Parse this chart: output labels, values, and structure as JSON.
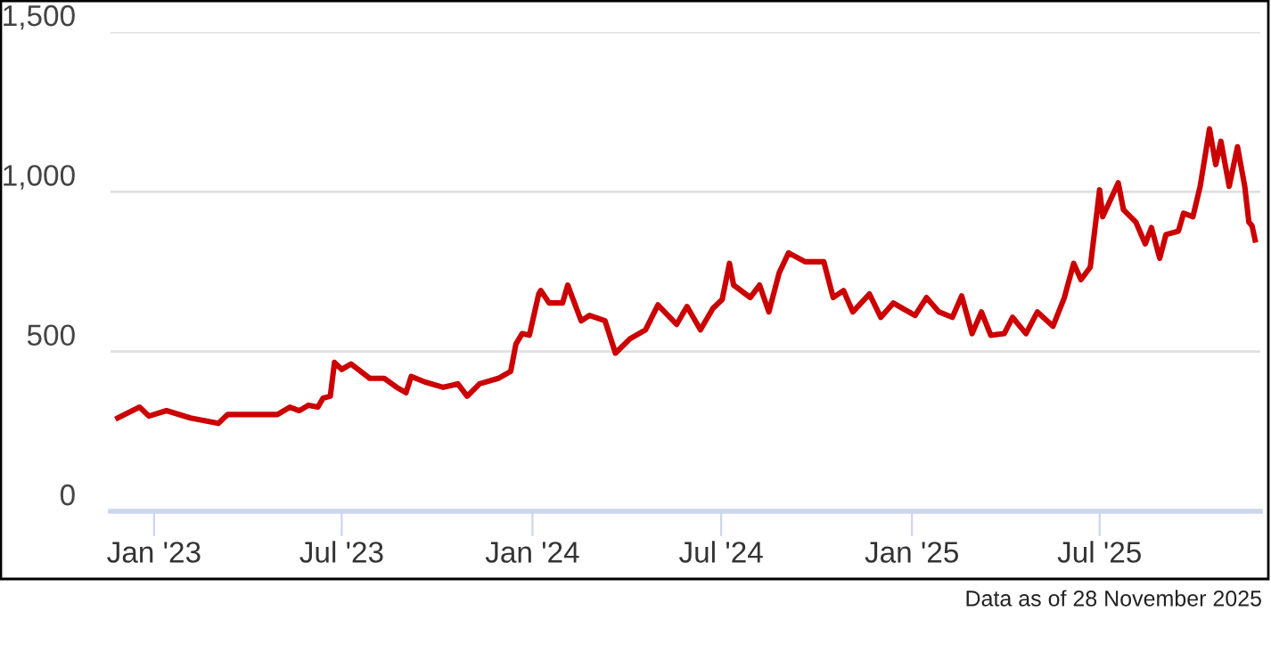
{
  "chart_data": {
    "type": "line",
    "x": [
      "2022-11-27",
      "2022-12-18",
      "2022-12-27",
      "2023-01-13",
      "2023-02-05",
      "2023-03-04",
      "2023-03-13",
      "2023-04-16",
      "2023-04-30",
      "2023-05-12",
      "2023-05-21",
      "2023-05-30",
      "2023-06-08",
      "2023-06-13",
      "2023-06-20",
      "2023-06-24",
      "2023-07-01",
      "2023-07-10",
      "2023-07-28",
      "2023-08-11",
      "2023-08-23",
      "2023-09-01",
      "2023-09-06",
      "2023-09-19",
      "2023-10-07",
      "2023-10-21",
      "2023-10-30",
      "2023-11-11",
      "2023-11-29",
      "2023-12-11",
      "2023-12-16",
      "2023-12-22",
      "2023-12-29",
      "2024-01-07",
      "2024-01-09",
      "2024-01-17",
      "2024-01-30",
      "2024-02-04",
      "2024-02-17",
      "2024-02-25",
      "2024-03-11",
      "2024-03-21",
      "2024-04-04",
      "2024-04-19",
      "2024-05-01",
      "2024-05-19",
      "2024-05-29",
      "2024-06-11",
      "2024-06-23",
      "2024-07-02",
      "2024-07-09",
      "2024-07-13",
      "2024-07-29",
      "2024-08-07",
      "2024-08-16",
      "2024-08-26",
      "2024-09-04",
      "2024-09-20",
      "2024-10-08",
      "2024-10-17",
      "2024-10-27",
      "2024-11-05",
      "2024-11-21",
      "2024-12-02",
      "2024-12-14",
      "2024-12-23",
      "2025-01-04",
      "2025-01-15",
      "2025-01-27",
      "2025-02-09",
      "2025-02-18",
      "2025-02-28",
      "2025-03-09",
      "2025-03-18",
      "2025-03-31",
      "2025-04-08",
      "2025-04-21",
      "2025-05-02",
      "2025-05-17",
      "2025-05-28",
      "2025-06-06",
      "2025-06-13",
      "2025-06-22",
      "2025-07-01",
      "2025-07-04",
      "2025-07-19",
      "2025-07-24",
      "2025-08-05",
      "2025-08-14",
      "2025-08-20",
      "2025-08-28",
      "2025-09-03",
      "2025-09-15",
      "2025-09-20",
      "2025-09-29",
      "2025-10-06",
      "2025-10-15",
      "2025-10-21",
      "2025-10-26",
      "2025-11-03",
      "2025-11-11",
      "2025-11-18",
      "2025-11-22",
      "2025-11-25",
      "2025-11-28"
    ],
    "series": [
      {
        "color": "#cc0000",
        "values": [
          292,
          326,
          298,
          315,
          292,
          275,
          303,
          303,
          303,
          326,
          315,
          332,
          326,
          354,
          360,
          466,
          444,
          461,
          416,
          416,
          388,
          371,
          422,
          405,
          388,
          399,
          360,
          399,
          416,
          438,
          523,
          556,
          551,
          680,
          691,
          652,
          652,
          708,
          596,
          613,
          596,
          495,
          540,
          568,
          646,
          585,
          641,
          568,
          635,
          663,
          776,
          708,
          669,
          708,
          624,
          747,
          809,
          781,
          781,
          669,
          691,
          624,
          680,
          607,
          652,
          635,
          613,
          669,
          624,
          607,
          674,
          556,
          624,
          551,
          556,
          607,
          556,
          624,
          579,
          669,
          776,
          725,
          764,
          1006,
          922,
          1028,
          944,
          905,
          837,
          888,
          792,
          866,
          877,
          933,
          922,
          1017,
          1197,
          1085,
          1158,
          1017,
          1141,
          1017,
          905,
          894,
          849
        ]
      }
    ],
    "xlim": [
      "2022-11-20",
      "2025-12-03"
    ],
    "xticks": [
      {
        "value": "2023-01-01",
        "label": "Jan '23"
      },
      {
        "value": "2023-07-01",
        "label": "Jul '23"
      },
      {
        "value": "2024-01-01",
        "label": "Jan '24"
      },
      {
        "value": "2024-07-01",
        "label": "Jul '24"
      },
      {
        "value": "2025-01-01",
        "label": "Jan '25"
      },
      {
        "value": "2025-07-01",
        "label": "Jul '25"
      }
    ],
    "ylim": [
      0,
      1500
    ],
    "yticks": [
      {
        "value": 0,
        "label": "0"
      },
      {
        "value": 500,
        "label": "500"
      },
      {
        "value": 1000,
        "label": "1,000"
      },
      {
        "value": 1500,
        "label": "1,500"
      }
    ],
    "grid": "y",
    "legend": false,
    "marker": "none",
    "line_style": "solid",
    "annotations": [
      "Data as of 28 November 2025"
    ]
  }
}
